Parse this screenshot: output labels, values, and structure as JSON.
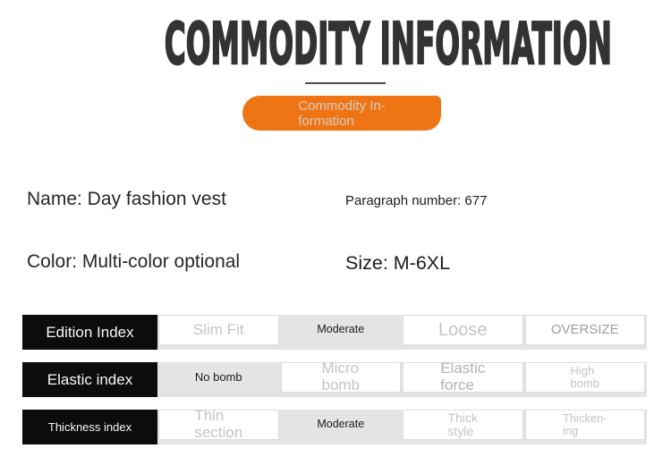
{
  "colors": {
    "accent_orange": "#ee7414",
    "title_text": "#333333",
    "label_cell_bg": "#0c0c0c",
    "row_backing_bg": "#e4e4e4",
    "muted_option_text": "#c4c4c4",
    "selected_option_text": "#1b1b1b"
  },
  "header": {
    "title": "COMMODITY INFORMATION",
    "tab_label": "Commodity In-\nformation"
  },
  "product": {
    "name_label": "Name: Day fashion vest",
    "paragraph_label": "Paragraph number: 677",
    "color_label": "Color: Multi-color optional",
    "size_label": "Size: M-6XL"
  },
  "index_table": {
    "rows": [
      {
        "label": "Edition Index",
        "cells": [
          {
            "text": "Slim Fit",
            "selected": false
          },
          {
            "text": "Moderate",
            "selected": true
          },
          {
            "text": "Loose",
            "selected": false
          },
          {
            "text": "OVERSIZE",
            "selected": false
          }
        ]
      },
      {
        "label": "Elastic index",
        "cells": [
          {
            "text": "No bomb",
            "selected": true
          },
          {
            "text": "Micro\nbomb",
            "selected": false
          },
          {
            "text": "Elastic\nforce",
            "selected": false
          },
          {
            "text": "High\nbomb",
            "selected": false
          }
        ]
      },
      {
        "label": "Thickness index",
        "cells": [
          {
            "text": "Thin\nsection",
            "selected": false
          },
          {
            "text": "Moderate",
            "selected": true
          },
          {
            "text": "Thick\nstyle",
            "selected": false
          },
          {
            "text": "Thicken-\ning",
            "selected": false
          }
        ]
      }
    ]
  }
}
